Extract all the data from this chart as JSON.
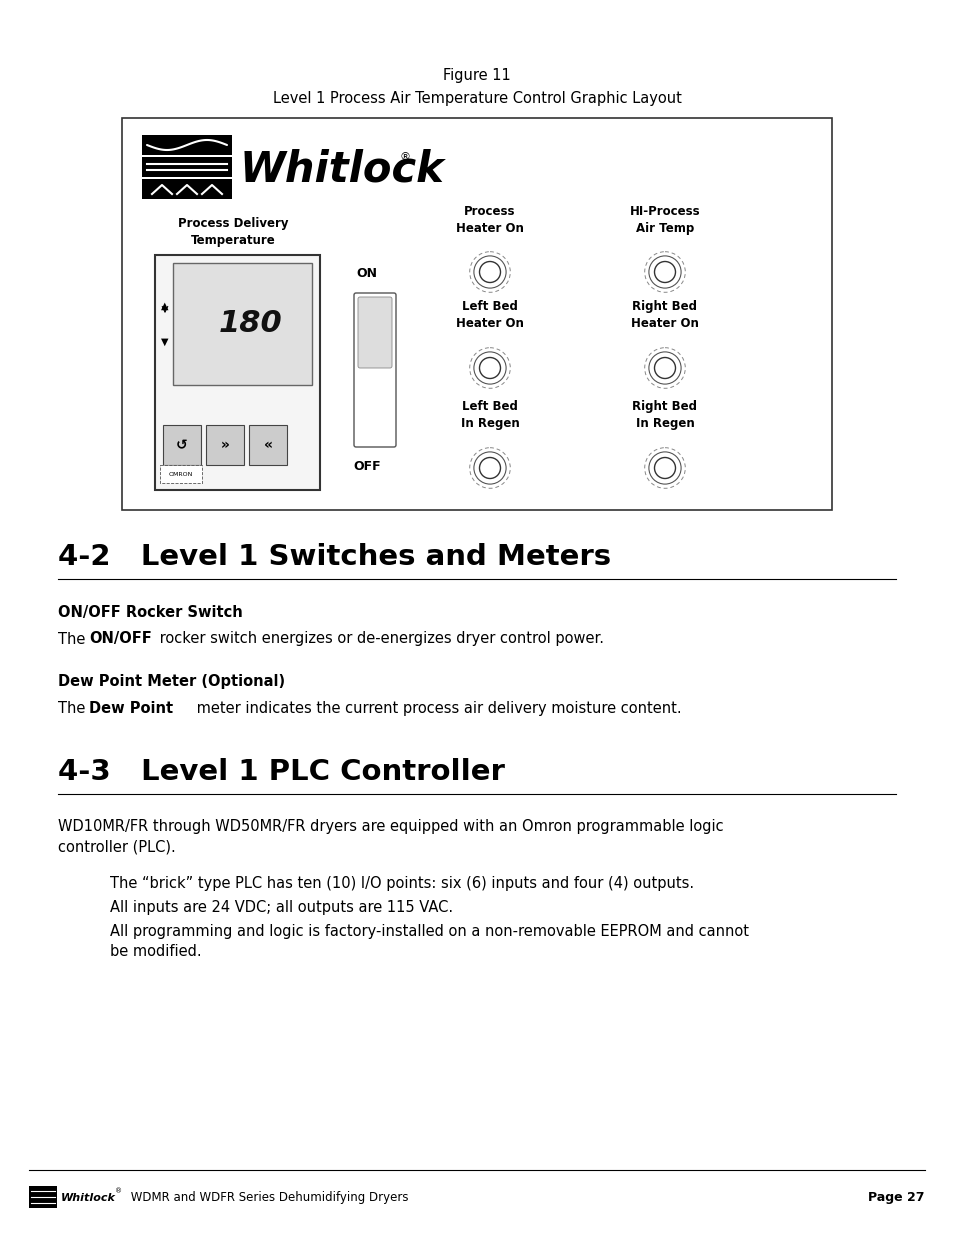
{
  "figure_title": "Figure 11",
  "figure_subtitle": "Level 1 Process Air Temperature Control Graphic Layout",
  "section_42_title": "4-2   Level 1 Switches and Meters",
  "subsection_onoff_title": "ON/OFF Rocker Switch",
  "subsection_dew_title": "Dew Point Meter (Optional)",
  "section_43_title": "4-3   Level 1 PLC Controller",
  "section_43_para1_line1": "WD10MR/FR through WD50MR/FR dryers are equipped with an Omron programmable logic",
  "section_43_para1_line2": "controller (PLC).",
  "section_43_bullet1": "The “brick” type PLC has ten (10) I/O points: six (6) inputs and four (4) outputs.",
  "section_43_bullet2": "All inputs are 24 VDC; all outputs are 115 VAC.",
  "section_43_bullet3_line1": "All programming and logic is factory-installed on a non-removable EEPROM and cannot",
  "section_43_bullet3_line2": "be modified.",
  "footer_text": "WDMR and WDFR Series Dehumidifying Dryers",
  "footer_page": "Page 27",
  "bg_color": "#ffffff"
}
